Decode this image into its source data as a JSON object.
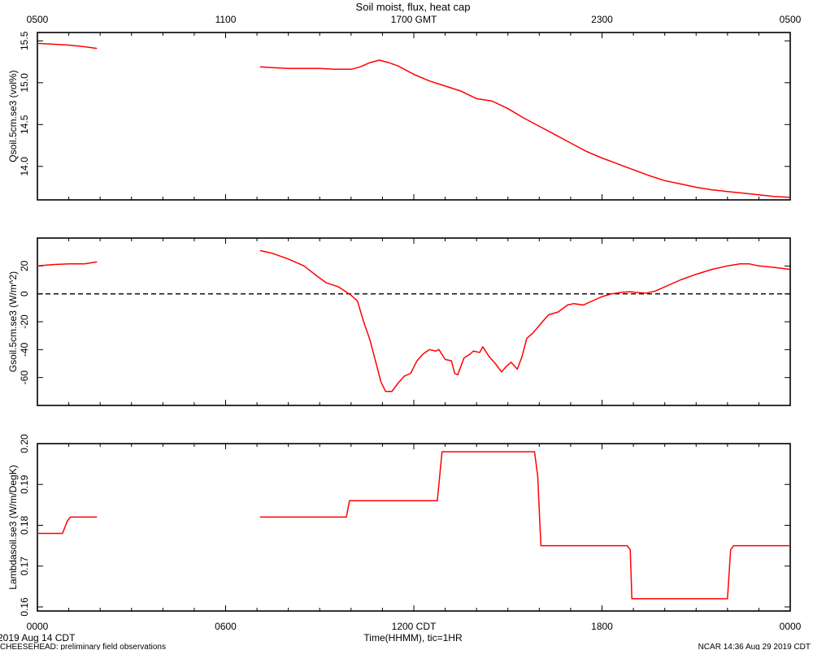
{
  "page": {
    "title": "Soil moist, flux, heat cap",
    "footer_left": "CHEESEHEAD: preliminary field observations",
    "footer_right": "NCAR 14:36 Aug 29 2019 CDT",
    "date_label": "2019 Aug 14 CDT",
    "x_axis_label": "Time(HHMM), tic=1HR"
  },
  "colors": {
    "series": "#ff0000",
    "axis": "#000000",
    "zero_line": "#000000"
  },
  "chart_data": [
    {
      "type": "line",
      "ylabel": "Qsoil.5cm.se3 (vol%)",
      "ylim": [
        13.6,
        15.6
      ],
      "yticks": [
        14.0,
        14.5,
        15.0,
        15.5
      ],
      "ytick_labels": [
        "14.0",
        "14.5",
        "15.0",
        "15.5"
      ],
      "x_unit": "hours since 0000 CDT",
      "segments": [
        [
          [
            0,
            15.47
          ],
          [
            0.5,
            15.46
          ],
          [
            1,
            15.45
          ],
          [
            1.5,
            15.43
          ],
          [
            1.9,
            15.41
          ]
        ],
        [
          [
            7.1,
            15.19
          ],
          [
            7.5,
            15.18
          ],
          [
            8,
            15.17
          ],
          [
            8.5,
            15.17
          ],
          [
            9,
            15.17
          ],
          [
            9.5,
            15.16
          ],
          [
            10,
            15.16
          ],
          [
            10.3,
            15.19
          ],
          [
            10.6,
            15.24
          ],
          [
            10.9,
            15.27
          ],
          [
            11.2,
            15.24
          ],
          [
            11.5,
            15.2
          ],
          [
            12,
            15.1
          ],
          [
            12.5,
            15.02
          ],
          [
            13,
            14.96
          ],
          [
            13.5,
            14.9
          ],
          [
            14,
            14.81
          ],
          [
            14.5,
            14.78
          ],
          [
            15,
            14.69
          ],
          [
            15.5,
            14.58
          ],
          [
            16,
            14.48
          ],
          [
            16.5,
            14.38
          ],
          [
            17,
            14.28
          ],
          [
            17.5,
            14.18
          ],
          [
            18,
            14.1
          ],
          [
            18.5,
            14.03
          ],
          [
            19,
            13.96
          ],
          [
            19.5,
            13.89
          ],
          [
            20,
            13.83
          ],
          [
            20.5,
            13.79
          ],
          [
            21,
            13.75
          ],
          [
            21.5,
            13.72
          ],
          [
            22,
            13.7
          ],
          [
            22.5,
            13.68
          ],
          [
            23,
            13.66
          ],
          [
            23.5,
            13.64
          ],
          [
            24,
            13.63
          ]
        ]
      ]
    },
    {
      "type": "line",
      "ylabel": "Gsoil.5cm.se3 (W/m^2)",
      "ylim": [
        -80,
        40
      ],
      "yticks": [
        -60,
        -40,
        -20,
        0,
        20
      ],
      "ytick_labels": [
        "-60",
        "-40",
        "-20",
        "0",
        "20"
      ],
      "zero_line": true,
      "x_unit": "hours since 0000 CDT",
      "segments": [
        [
          [
            0,
            20
          ],
          [
            0.5,
            21
          ],
          [
            1,
            21.5
          ],
          [
            1.5,
            21.5
          ],
          [
            1.9,
            23
          ]
        ],
        [
          [
            7.1,
            31
          ],
          [
            7.5,
            29
          ],
          [
            8,
            25
          ],
          [
            8.5,
            20
          ],
          [
            8.9,
            13
          ],
          [
            9.2,
            8
          ],
          [
            9.6,
            5
          ],
          [
            10,
            -1
          ],
          [
            10.2,
            -5
          ],
          [
            10.4,
            -20
          ],
          [
            10.6,
            -33
          ],
          [
            10.8,
            -50
          ],
          [
            10.95,
            -63
          ],
          [
            11.1,
            -70
          ],
          [
            11.3,
            -70
          ],
          [
            11.5,
            -64
          ],
          [
            11.7,
            -59
          ],
          [
            11.9,
            -57
          ],
          [
            12.1,
            -48
          ],
          [
            12.3,
            -43
          ],
          [
            12.5,
            -40
          ],
          [
            12.7,
            -41
          ],
          [
            12.8,
            -40
          ],
          [
            13.0,
            -47
          ],
          [
            13.2,
            -48
          ],
          [
            13.3,
            -57
          ],
          [
            13.4,
            -58
          ],
          [
            13.6,
            -46
          ],
          [
            13.8,
            -43
          ],
          [
            13.9,
            -41
          ],
          [
            14.1,
            -42
          ],
          [
            14.2,
            -38
          ],
          [
            14.4,
            -45
          ],
          [
            14.6,
            -50
          ],
          [
            14.8,
            -56
          ],
          [
            14.95,
            -52
          ],
          [
            15.1,
            -49
          ],
          [
            15.3,
            -54
          ],
          [
            15.45,
            -45
          ],
          [
            15.6,
            -32
          ],
          [
            15.8,
            -28
          ],
          [
            16.1,
            -20
          ],
          [
            16.3,
            -15
          ],
          [
            16.6,
            -13
          ],
          [
            16.9,
            -8
          ],
          [
            17.1,
            -7
          ],
          [
            17.4,
            -8
          ],
          [
            17.8,
            -4
          ],
          [
            18.0,
            -2
          ],
          [
            18.3,
            0
          ],
          [
            18.6,
            1
          ],
          [
            18.9,
            1.5
          ],
          [
            19.1,
            1
          ],
          [
            19.4,
            0.5
          ],
          [
            19.7,
            2
          ],
          [
            20,
            5
          ],
          [
            20.5,
            10
          ],
          [
            21,
            14
          ],
          [
            21.5,
            17.5
          ],
          [
            22,
            20
          ],
          [
            22.4,
            21.5
          ],
          [
            22.7,
            21.5
          ],
          [
            23,
            20
          ],
          [
            23.5,
            19
          ],
          [
            24,
            17.5
          ]
        ]
      ]
    },
    {
      "type": "line",
      "ylabel": "Lambdasoil.se3 (W/m/DegK)",
      "ylim": [
        0.159,
        0.2
      ],
      "yticks": [
        0.16,
        0.17,
        0.18,
        0.19,
        0.2
      ],
      "ytick_labels": [
        "0.16",
        "0.17",
        "0.18",
        "0.19",
        "0.20"
      ],
      "x_unit": "hours since 0000 CDT",
      "segments": [
        [
          [
            0,
            0.178
          ],
          [
            0.8,
            0.178
          ],
          [
            0.95,
            0.181
          ],
          [
            1.05,
            0.182
          ],
          [
            1.9,
            0.182
          ]
        ],
        [
          [
            7.1,
            0.182
          ],
          [
            9.85,
            0.182
          ],
          [
            9.95,
            0.186
          ],
          [
            12.75,
            0.186
          ],
          [
            12.9,
            0.198
          ],
          [
            15.85,
            0.198
          ],
          [
            15.95,
            0.192
          ],
          [
            16.05,
            0.175
          ],
          [
            18.8,
            0.175
          ],
          [
            18.9,
            0.174
          ],
          [
            18.95,
            0.162
          ],
          [
            22.0,
            0.162
          ],
          [
            22.1,
            0.174
          ],
          [
            22.2,
            0.175
          ],
          [
            24,
            0.175
          ]
        ]
      ]
    }
  ],
  "x_axis": {
    "xlim": [
      0,
      24
    ],
    "bottom_ticks": [
      0,
      6,
      12,
      18,
      24
    ],
    "bottom_tick_labels": [
      "0000",
      "0600",
      "1200 CDT",
      "1800",
      "0000"
    ],
    "top_ticks": [
      0,
      6,
      12,
      18,
      24
    ],
    "top_tick_labels": [
      "0500",
      "1100",
      "1700 GMT",
      "2300",
      "0500"
    ]
  }
}
